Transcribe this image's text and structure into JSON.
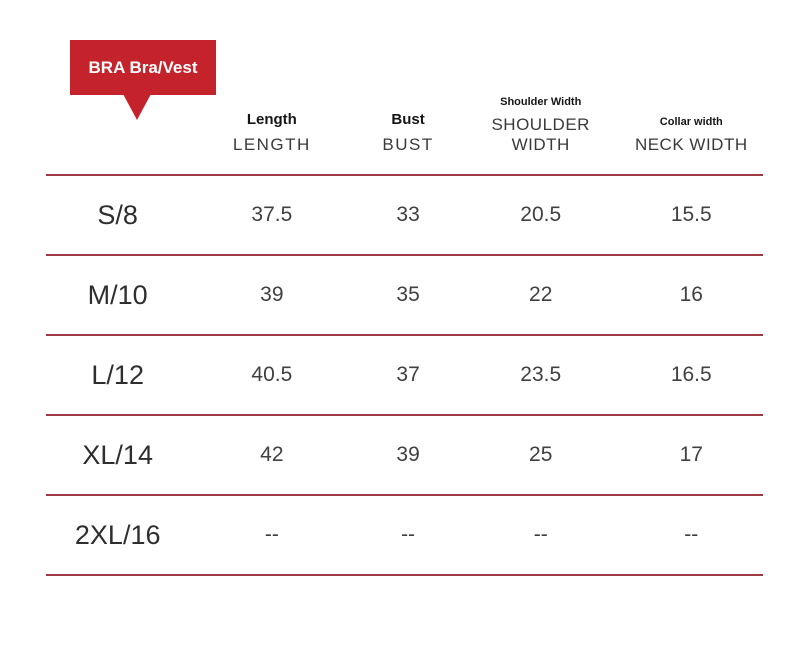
{
  "colors": {
    "badge-red": "#C4232B",
    "line-red": "#9E3A43",
    "header-black": "#151515",
    "header-gray": "#3A3A3A",
    "size-text": "#2E2E2E",
    "value-text": "#404040"
  },
  "chart_data": {
    "type": "table",
    "title": "BRA Bra/Vest",
    "column_headers": [
      {
        "label": "Length",
        "sublabel": "LENGTH"
      },
      {
        "label": "Bust",
        "sublabel": "BUST"
      },
      {
        "label": "Shoulder Width",
        "sublabel": "SHOULDER WIDTH"
      },
      {
        "label": "Collar width",
        "sublabel": "NECK WIDTH"
      }
    ],
    "rows": [
      {
        "size": "S/8",
        "values": [
          "37.5",
          "33",
          "20.5",
          "15.5"
        ]
      },
      {
        "size": "M/10",
        "values": [
          "39",
          "35",
          "22",
          "16"
        ]
      },
      {
        "size": "L/12",
        "values": [
          "40.5",
          "37",
          "23.5",
          "16.5"
        ]
      },
      {
        "size": "XL/14",
        "values": [
          "42",
          "39",
          "25",
          "17"
        ]
      },
      {
        "size": "2XL/16",
        "values": [
          "--",
          "--",
          "--",
          "--"
        ]
      }
    ]
  }
}
